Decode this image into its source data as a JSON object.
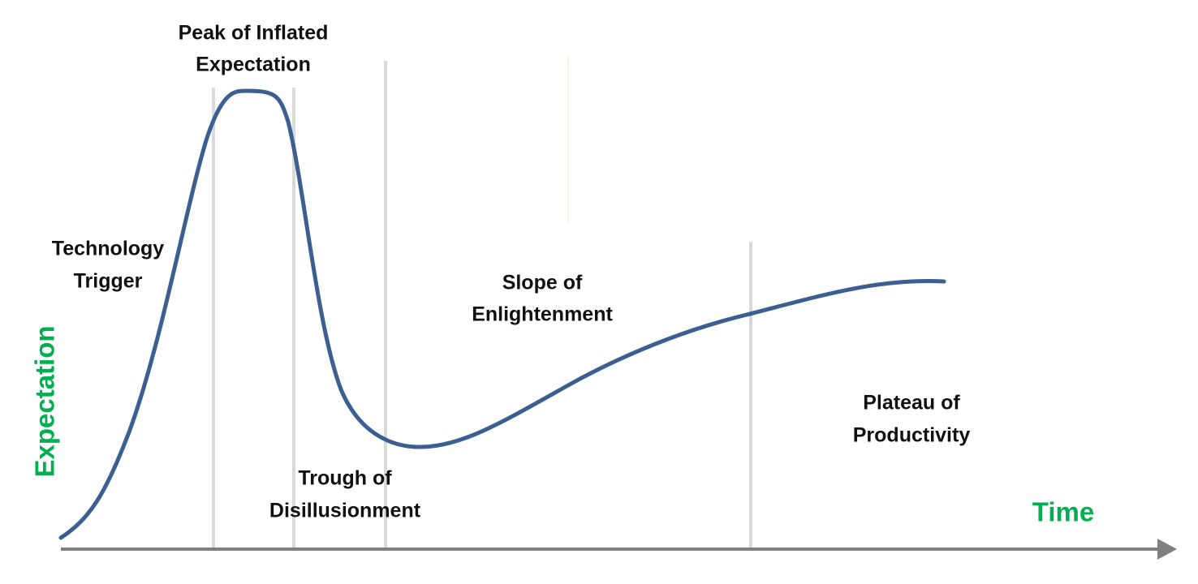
{
  "axes": {
    "y_label": "Expectation",
    "x_label": "Time"
  },
  "phases": [
    {
      "lines": [
        "Technology",
        "Trigger"
      ]
    },
    {
      "lines": [
        "Peak of Inflated",
        "Expectation"
      ]
    },
    {
      "lines": [
        "Trough of",
        "Disillusionment"
      ]
    },
    {
      "lines": [
        "Slope of",
        "Enlightenment"
      ]
    },
    {
      "lines": [
        "Plateau of",
        "Productivity"
      ]
    }
  ]
}
